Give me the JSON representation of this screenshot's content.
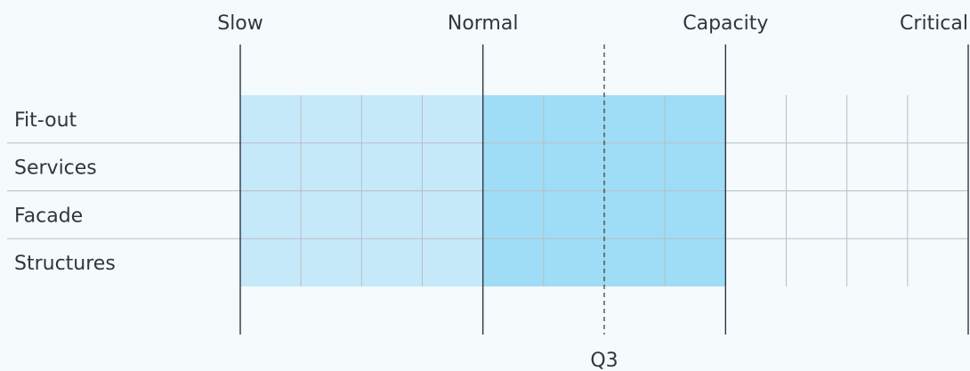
{
  "chart_data": {
    "type": "heatmap",
    "title": "",
    "xlabel": "",
    "ylabel": "",
    "rows": [
      "Fit-out",
      "Services",
      "Facade",
      "Structures"
    ],
    "zones": [
      {
        "label": "Slow",
        "position": 0
      },
      {
        "label": "Normal",
        "position": 4
      },
      {
        "label": "Capacity",
        "position": 8
      },
      {
        "label": "Critical",
        "position": 12
      }
    ],
    "minor_divisions": 12,
    "filled_bands": [
      {
        "from": 0,
        "to": 4,
        "color": "#c6e9f9"
      },
      {
        "from": 4,
        "to": 8,
        "color": "#9fdcf6"
      }
    ],
    "marker": {
      "label": "Q3",
      "position": 6
    }
  },
  "colors": {
    "background": "#f5fafd",
    "slow_band": "#c6e9f9",
    "normal_band": "#9fdcf6",
    "grid": "#b8bec4",
    "axis": "#2f3640",
    "text": "#2f3640"
  }
}
